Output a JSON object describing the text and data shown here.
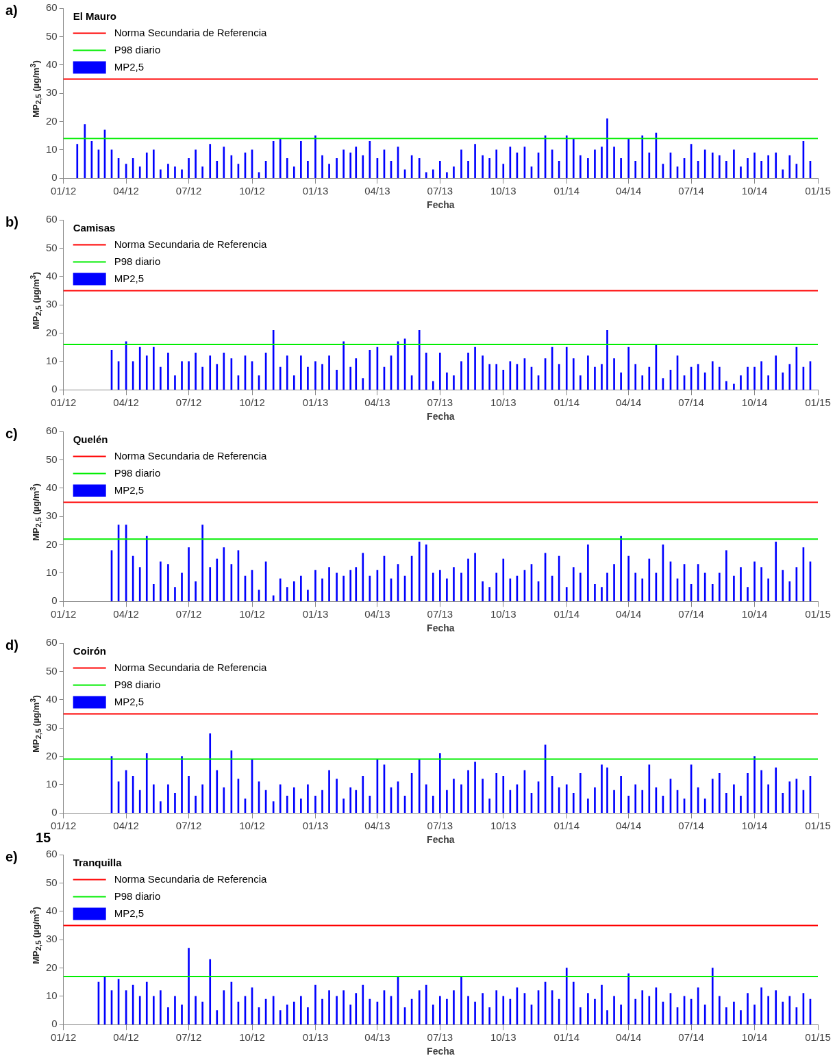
{
  "chart_data": [
    {
      "type": "bar",
      "title": "a)",
      "legend_title": "El Mauro",
      "xlabel": "Fecha",
      "ylabel": "MP$_{2,5}$ (µg/m$^{3}$)",
      "legend": "top left",
      "grid": false,
      "xlim": [
        "2012-01-01",
        "2015-01-01"
      ],
      "xticks": [
        {
          "value": "2012-01-01",
          "label": "01/12"
        },
        {
          "value": "2012-04-01",
          "label": "04/12"
        },
        {
          "value": "2012-07-01",
          "label": "07/12"
        },
        {
          "value": "2012-10-01",
          "label": "10/12"
        },
        {
          "value": "2013-01-01",
          "label": "01/13"
        },
        {
          "value": "2013-04-01",
          "label": "04/13"
        },
        {
          "value": "2013-07-01",
          "label": "07/13"
        },
        {
          "value": "2013-10-01",
          "label": "10/13"
        },
        {
          "value": "2014-01-01",
          "label": "01/14"
        },
        {
          "value": "2014-04-01",
          "label": "04/14"
        },
        {
          "value": "2014-07-01",
          "label": "07/14"
        },
        {
          "value": "2014-10-01",
          "label": "10/14"
        },
        {
          "value": "2015-01-01",
          "label": "01/15"
        }
      ],
      "ylim": [
        0,
        60
      ],
      "yticks": [
        0,
        10,
        20,
        30,
        40,
        50,
        60
      ],
      "ref_lines": [
        {
          "axis": "y",
          "value": 35,
          "label": "Norma Secundaria de Referencia",
          "color": "#ff0000"
        },
        {
          "axis": "y",
          "value": 14,
          "label": "P98 diario",
          "color": "#00ee00"
        }
      ],
      "x": [
        "2012-01-21",
        "2012-02-01",
        "2012-02-11",
        "2012-02-21",
        "2012-03-01",
        "2012-03-11",
        "2012-03-21",
        "2012-04-01",
        "2012-04-11",
        "2012-04-21",
        "2012-05-01",
        "2012-05-11",
        "2012-05-21",
        "2012-06-01",
        "2012-06-11",
        "2012-06-21",
        "2012-07-01",
        "2012-07-11",
        "2012-07-21",
        "2012-08-01",
        "2012-08-11",
        "2012-08-21",
        "2012-09-01",
        "2012-09-11",
        "2012-09-21",
        "2012-10-01",
        "2012-10-11",
        "2012-10-21",
        "2012-11-01",
        "2012-11-11",
        "2012-11-21",
        "2012-12-01",
        "2012-12-11",
        "2012-12-21",
        "2013-01-01",
        "2013-01-11",
        "2013-01-21",
        "2013-02-01",
        "2013-02-11",
        "2013-02-21",
        "2013-03-01",
        "2013-03-11",
        "2013-03-21",
        "2013-04-01",
        "2013-04-11",
        "2013-04-21",
        "2013-05-01",
        "2013-05-11",
        "2013-05-21",
        "2013-06-01",
        "2013-06-11",
        "2013-06-21",
        "2013-07-01",
        "2013-07-11",
        "2013-07-21",
        "2013-08-01",
        "2013-08-11",
        "2013-08-21",
        "2013-09-01",
        "2013-09-11",
        "2013-09-21",
        "2013-10-01",
        "2013-10-11",
        "2013-10-21",
        "2013-11-01",
        "2013-11-11",
        "2013-11-21",
        "2013-12-01",
        "2013-12-11",
        "2013-12-21",
        "2014-01-01",
        "2014-01-11",
        "2014-01-21",
        "2014-02-01",
        "2014-02-11",
        "2014-02-21",
        "2014-03-01",
        "2014-03-11",
        "2014-03-21",
        "2014-04-01",
        "2014-04-11",
        "2014-04-21",
        "2014-05-01",
        "2014-05-11",
        "2014-05-21",
        "2014-06-01",
        "2014-06-11",
        "2014-06-21",
        "2014-07-01",
        "2014-07-11",
        "2014-07-21",
        "2014-08-01",
        "2014-08-11",
        "2014-08-21",
        "2014-09-01",
        "2014-09-11",
        "2014-09-21",
        "2014-10-01",
        "2014-10-11",
        "2014-10-21",
        "2014-11-01",
        "2014-11-11",
        "2014-11-21",
        "2014-12-01",
        "2014-12-11",
        "2014-12-21"
      ],
      "series": [
        {
          "name": "MP2,5",
          "color": "#0000ff",
          "values": [
            12,
            19,
            13,
            10,
            17,
            10,
            7,
            5,
            7,
            4,
            9,
            10,
            3,
            5,
            4,
            3,
            7,
            10,
            4,
            12,
            6,
            11,
            8,
            5,
            9,
            10,
            2,
            6,
            13,
            14,
            7,
            4,
            13,
            6,
            15,
            8,
            5,
            7,
            10,
            9,
            11,
            8,
            13,
            7,
            10,
            6,
            11,
            3,
            8,
            7,
            2,
            3,
            6,
            2,
            4,
            10,
            6,
            12,
            8,
            7,
            10,
            5,
            11,
            9,
            11,
            4,
            9,
            15,
            10,
            6,
            15,
            14,
            8,
            7,
            10,
            11,
            21,
            11,
            7,
            14,
            6,
            15,
            9,
            16,
            5,
            9,
            4,
            7,
            12,
            6,
            10,
            9,
            8,
            6,
            10,
            4,
            7,
            9,
            6,
            8,
            9,
            3,
            8,
            5,
            13,
            6
          ]
        }
      ]
    },
    {
      "type": "bar",
      "title": "b)",
      "legend_title": "Camisas",
      "xlabel": "Fecha",
      "ylabel": "MP$_{2,5}$ (µg/m$^{3}$)",
      "legend": "top left",
      "grid": false,
      "xlim": [
        "2012-01-01",
        "2015-01-01"
      ],
      "xticks": [
        {
          "value": "2012-01-01",
          "label": "01/12"
        },
        {
          "value": "2012-04-01",
          "label": "04/12"
        },
        {
          "value": "2012-07-01",
          "label": "07/12"
        },
        {
          "value": "2012-10-01",
          "label": "10/12"
        },
        {
          "value": "2013-01-01",
          "label": "01/13"
        },
        {
          "value": "2013-04-01",
          "label": "04/13"
        },
        {
          "value": "2013-07-01",
          "label": "07/13"
        },
        {
          "value": "2013-10-01",
          "label": "10/13"
        },
        {
          "value": "2014-01-01",
          "label": "01/14"
        },
        {
          "value": "2014-04-01",
          "label": "04/14"
        },
        {
          "value": "2014-07-01",
          "label": "07/14"
        },
        {
          "value": "2014-10-01",
          "label": "10/14"
        },
        {
          "value": "2015-01-01",
          "label": "01/15"
        }
      ],
      "ylim": [
        0,
        60
      ],
      "yticks": [
        0,
        10,
        20,
        30,
        40,
        50,
        60
      ],
      "ref_lines": [
        {
          "axis": "y",
          "value": 35,
          "label": "Norma Secundaria de Referencia",
          "color": "#ff0000"
        },
        {
          "axis": "y",
          "value": 16,
          "label": "P98 diario",
          "color": "#00ee00"
        }
      ],
      "x": [
        "2012-03-11",
        "2012-03-21",
        "2012-04-01",
        "2012-04-11",
        "2012-04-21",
        "2012-05-01",
        "2012-05-11",
        "2012-05-21",
        "2012-06-01",
        "2012-06-11",
        "2012-06-21",
        "2012-07-01",
        "2012-07-11",
        "2012-07-21",
        "2012-08-01",
        "2012-08-11",
        "2012-08-21",
        "2012-09-01",
        "2012-09-11",
        "2012-09-21",
        "2012-10-01",
        "2012-10-11",
        "2012-10-21",
        "2012-11-01",
        "2012-11-11",
        "2012-11-21",
        "2012-12-01",
        "2012-12-11",
        "2012-12-21",
        "2013-01-01",
        "2013-01-11",
        "2013-01-21",
        "2013-02-01",
        "2013-02-11",
        "2013-02-21",
        "2013-03-01",
        "2013-03-11",
        "2013-03-21",
        "2013-04-01",
        "2013-04-11",
        "2013-04-21",
        "2013-05-01",
        "2013-05-11",
        "2013-05-21",
        "2013-06-01",
        "2013-06-11",
        "2013-06-21",
        "2013-07-01",
        "2013-07-11",
        "2013-07-21",
        "2013-08-01",
        "2013-08-11",
        "2013-08-21",
        "2013-09-01",
        "2013-09-11",
        "2013-09-21",
        "2013-10-01",
        "2013-10-11",
        "2013-10-21",
        "2013-11-01",
        "2013-11-11",
        "2013-11-21",
        "2013-12-01",
        "2013-12-11",
        "2013-12-21",
        "2014-01-01",
        "2014-01-11",
        "2014-01-21",
        "2014-02-01",
        "2014-02-11",
        "2014-02-21",
        "2014-03-01",
        "2014-03-11",
        "2014-03-21",
        "2014-04-01",
        "2014-04-11",
        "2014-04-21",
        "2014-05-01",
        "2014-05-11",
        "2014-05-21",
        "2014-06-01",
        "2014-06-11",
        "2014-06-21",
        "2014-07-01",
        "2014-07-11",
        "2014-07-21",
        "2014-08-01",
        "2014-08-11",
        "2014-08-21",
        "2014-09-01",
        "2014-09-11",
        "2014-09-21",
        "2014-10-01",
        "2014-10-11",
        "2014-10-21",
        "2014-11-01",
        "2014-11-11",
        "2014-11-21",
        "2014-12-01",
        "2014-12-11",
        "2014-12-21"
      ],
      "series": [
        {
          "name": "MP2,5",
          "color": "#0000ff",
          "values": [
            14,
            10,
            17,
            10,
            15,
            12,
            15,
            8,
            13,
            5,
            10,
            10,
            13,
            8,
            12,
            9,
            13,
            11,
            5,
            12,
            10,
            5,
            13,
            21,
            8,
            12,
            5,
            12,
            8,
            10,
            9,
            12,
            7,
            17,
            8,
            11,
            4,
            14,
            15,
            8,
            12,
            17,
            18,
            5,
            21,
            13,
            3,
            13,
            6,
            5,
            10,
            13,
            15,
            12,
            9,
            9,
            7,
            10,
            9,
            11,
            8,
            5,
            11,
            15,
            9,
            15,
            11,
            5,
            12,
            8,
            9,
            21,
            11,
            6,
            15,
            9,
            5,
            8,
            16,
            4,
            7,
            12,
            5,
            8,
            9,
            6,
            10,
            8,
            3,
            2,
            5,
            8,
            8,
            10,
            5,
            12,
            6,
            9,
            15,
            8,
            10
          ]
        }
      ]
    },
    {
      "type": "bar",
      "title": "c)",
      "legend_title": "Quelén",
      "xlabel": "Fecha",
      "ylabel": "MP$_{2,5}$ (µg/m$^{3}$)",
      "legend": "top left",
      "grid": false,
      "xlim": [
        "2012-01-01",
        "2015-01-01"
      ],
      "xticks": [
        {
          "value": "2012-01-01",
          "label": "01/12"
        },
        {
          "value": "2012-04-01",
          "label": "04/12"
        },
        {
          "value": "2012-07-01",
          "label": "07/12"
        },
        {
          "value": "2012-10-01",
          "label": "10/12"
        },
        {
          "value": "2013-01-01",
          "label": "01/13"
        },
        {
          "value": "2013-04-01",
          "label": "04/13"
        },
        {
          "value": "2013-07-01",
          "label": "07/13"
        },
        {
          "value": "2013-10-01",
          "label": "10/13"
        },
        {
          "value": "2014-01-01",
          "label": "01/14"
        },
        {
          "value": "2014-04-01",
          "label": "04/14"
        },
        {
          "value": "2014-07-01",
          "label": "07/14"
        },
        {
          "value": "2014-10-01",
          "label": "10/14"
        },
        {
          "value": "2015-01-01",
          "label": "01/15"
        }
      ],
      "ylim": [
        0,
        60
      ],
      "yticks": [
        0,
        10,
        20,
        30,
        40,
        50,
        60
      ],
      "ref_lines": [
        {
          "axis": "y",
          "value": 35,
          "label": "Norma Secundaria de Referencia",
          "color": "#ff0000"
        },
        {
          "axis": "y",
          "value": 22,
          "label": "P98 diario",
          "color": "#00ee00"
        }
      ],
      "x": [
        "2012-03-11",
        "2012-03-21",
        "2012-04-01",
        "2012-04-11",
        "2012-04-21",
        "2012-05-01",
        "2012-05-11",
        "2012-05-21",
        "2012-06-01",
        "2012-06-11",
        "2012-06-21",
        "2012-07-01",
        "2012-07-11",
        "2012-07-21",
        "2012-08-01",
        "2012-08-11",
        "2012-08-21",
        "2012-09-01",
        "2012-09-11",
        "2012-09-21",
        "2012-10-01",
        "2012-10-11",
        "2012-10-21",
        "2012-11-01",
        "2012-11-11",
        "2012-11-21",
        "2012-12-01",
        "2012-12-11",
        "2012-12-21",
        "2013-01-01",
        "2013-01-11",
        "2013-01-21",
        "2013-02-01",
        "2013-02-11",
        "2013-02-21",
        "2013-03-01",
        "2013-03-11",
        "2013-03-21",
        "2013-04-01",
        "2013-04-11",
        "2013-04-21",
        "2013-05-01",
        "2013-05-11",
        "2013-05-21",
        "2013-06-01",
        "2013-06-11",
        "2013-06-21",
        "2013-07-01",
        "2013-07-11",
        "2013-07-21",
        "2013-08-01",
        "2013-08-11",
        "2013-08-21",
        "2013-09-01",
        "2013-09-11",
        "2013-09-21",
        "2013-10-01",
        "2013-10-11",
        "2013-10-21",
        "2013-11-01",
        "2013-11-11",
        "2013-11-21",
        "2013-12-01",
        "2013-12-11",
        "2013-12-21",
        "2014-01-01",
        "2014-01-11",
        "2014-01-21",
        "2014-02-01",
        "2014-02-11",
        "2014-02-21",
        "2014-03-01",
        "2014-03-11",
        "2014-03-21",
        "2014-04-01",
        "2014-04-11",
        "2014-04-21",
        "2014-05-01",
        "2014-05-11",
        "2014-05-21",
        "2014-06-01",
        "2014-06-11",
        "2014-06-21",
        "2014-07-01",
        "2014-07-11",
        "2014-07-21",
        "2014-08-01",
        "2014-08-11",
        "2014-08-21",
        "2014-09-01",
        "2014-09-11",
        "2014-09-21",
        "2014-10-01",
        "2014-10-11",
        "2014-10-21",
        "2014-11-01",
        "2014-11-11",
        "2014-11-21",
        "2014-12-01",
        "2014-12-11",
        "2014-12-21"
      ],
      "series": [
        {
          "name": "MP2,5",
          "color": "#0000ff",
          "values": [
            18,
            27,
            27,
            16,
            12,
            23,
            6,
            14,
            13,
            5,
            10,
            19,
            7,
            27,
            12,
            15,
            19,
            13,
            18,
            9,
            11,
            4,
            14,
            2,
            8,
            5,
            7,
            9,
            4,
            11,
            8,
            12,
            10,
            9,
            11,
            12,
            17,
            9,
            11,
            16,
            8,
            13,
            9,
            16,
            21,
            20,
            10,
            11,
            8,
            12,
            10,
            15,
            17,
            7,
            5,
            10,
            15,
            8,
            9,
            11,
            13,
            7,
            17,
            9,
            16,
            5,
            12,
            10,
            20,
            6,
            5,
            10,
            13,
            23,
            16,
            10,
            8,
            15,
            10,
            20,
            14,
            8,
            13,
            6,
            13,
            10,
            6,
            10,
            18,
            9,
            12,
            5,
            14,
            12,
            8,
            21,
            11,
            7,
            12,
            19,
            14
          ]
        }
      ]
    },
    {
      "type": "bar",
      "title": "d)",
      "legend_title": "Coirón",
      "xlabel": "Fecha",
      "ylabel": "MP$_{2,5}$ (µg/m$^{3}$)",
      "legend": "top left",
      "grid": false,
      "xlim": [
        "2012-01-01",
        "2015-01-01"
      ],
      "xticks": [
        {
          "value": "2012-01-01",
          "label": "01/12"
        },
        {
          "value": "2012-04-01",
          "label": "04/12"
        },
        {
          "value": "2012-07-01",
          "label": "07/12"
        },
        {
          "value": "2012-10-01",
          "label": "10/12"
        },
        {
          "value": "2013-01-01",
          "label": "01/13"
        },
        {
          "value": "2013-04-01",
          "label": "04/13"
        },
        {
          "value": "2013-07-01",
          "label": "07/13"
        },
        {
          "value": "2013-10-01",
          "label": "10/13"
        },
        {
          "value": "2014-01-01",
          "label": "01/14"
        },
        {
          "value": "2014-04-01",
          "label": "04/14"
        },
        {
          "value": "2014-07-01",
          "label": "07/14"
        },
        {
          "value": "2014-10-01",
          "label": "10/14"
        },
        {
          "value": "2015-01-01",
          "label": "01/15"
        }
      ],
      "ylim": [
        0,
        60
      ],
      "yticks": [
        0,
        10,
        20,
        30,
        40,
        50,
        60
      ],
      "ref_lines": [
        {
          "axis": "y",
          "value": 35,
          "label": "Norma Secundaria de Referencia",
          "color": "#ff0000"
        },
        {
          "axis": "y",
          "value": 19,
          "label": "P98 diario",
          "color": "#00ee00"
        }
      ],
      "x": [
        "2012-03-11",
        "2012-03-21",
        "2012-04-01",
        "2012-04-11",
        "2012-04-21",
        "2012-05-01",
        "2012-05-11",
        "2012-05-21",
        "2012-06-01",
        "2012-06-11",
        "2012-06-21",
        "2012-07-01",
        "2012-07-11",
        "2012-07-21",
        "2012-08-01",
        "2012-08-11",
        "2012-08-21",
        "2012-09-01",
        "2012-09-11",
        "2012-09-21",
        "2012-10-01",
        "2012-10-11",
        "2012-10-21",
        "2012-11-01",
        "2012-11-11",
        "2012-11-21",
        "2012-12-01",
        "2012-12-11",
        "2012-12-21",
        "2013-01-01",
        "2013-01-11",
        "2013-01-21",
        "2013-02-01",
        "2013-02-11",
        "2013-02-21",
        "2013-03-01",
        "2013-03-11",
        "2013-03-21",
        "2013-04-01",
        "2013-04-11",
        "2013-04-21",
        "2013-05-01",
        "2013-05-11",
        "2013-05-21",
        "2013-06-01",
        "2013-06-11",
        "2013-06-21",
        "2013-07-01",
        "2013-07-11",
        "2013-07-21",
        "2013-08-01",
        "2013-08-11",
        "2013-08-21",
        "2013-09-01",
        "2013-09-11",
        "2013-09-21",
        "2013-10-01",
        "2013-10-11",
        "2013-10-21",
        "2013-11-01",
        "2013-11-11",
        "2013-11-21",
        "2013-12-01",
        "2013-12-11",
        "2013-12-21",
        "2014-01-01",
        "2014-01-11",
        "2014-01-21",
        "2014-02-01",
        "2014-02-11",
        "2014-02-21",
        "2014-03-01",
        "2014-03-11",
        "2014-03-21",
        "2014-04-01",
        "2014-04-11",
        "2014-04-21",
        "2014-05-01",
        "2014-05-11",
        "2014-05-21",
        "2014-06-01",
        "2014-06-11",
        "2014-06-21",
        "2014-07-01",
        "2014-07-11",
        "2014-07-21",
        "2014-08-01",
        "2014-08-11",
        "2014-08-21",
        "2014-09-01",
        "2014-09-11",
        "2014-09-21",
        "2014-10-01",
        "2014-10-11",
        "2014-10-21",
        "2014-11-01",
        "2014-11-11",
        "2014-11-21",
        "2014-12-01",
        "2014-12-11",
        "2014-12-21"
      ],
      "series": [
        {
          "name": "MP2,5",
          "color": "#0000ff",
          "values": [
            20,
            11,
            15,
            13,
            8,
            21,
            10,
            4,
            10,
            7,
            20,
            13,
            6,
            10,
            28,
            15,
            9,
            22,
            12,
            5,
            19,
            11,
            8,
            4,
            10,
            6,
            9,
            5,
            10,
            6,
            8,
            15,
            12,
            5,
            9,
            8,
            13,
            6,
            19,
            17,
            9,
            11,
            6,
            14,
            19,
            10,
            6,
            21,
            8,
            12,
            10,
            15,
            18,
            12,
            5,
            14,
            13,
            8,
            10,
            15,
            7,
            11,
            24,
            13,
            9,
            10,
            7,
            14,
            5,
            9,
            17,
            16,
            8,
            13,
            6,
            10,
            8,
            17,
            9,
            6,
            12,
            8,
            5,
            17,
            9,
            5,
            12,
            14,
            7,
            10,
            6,
            14,
            20,
            15,
            10,
            16,
            7,
            11,
            12,
            8,
            13
          ]
        }
      ]
    },
    {
      "type": "bar",
      "title": "e)",
      "legend_title": "Tranquilla",
      "xlabel": "Fecha",
      "ylabel": "MP$_{2,5}$ (µg/m$^{3}$)",
      "legend": "top left",
      "grid": false,
      "annotations": [
        "15"
      ],
      "xlim": [
        "2012-01-01",
        "2015-01-01"
      ],
      "xticks": [
        {
          "value": "2012-01-01",
          "label": "01/12"
        },
        {
          "value": "2012-04-01",
          "label": "04/12"
        },
        {
          "value": "2012-07-01",
          "label": "07/12"
        },
        {
          "value": "2012-10-01",
          "label": "10/12"
        },
        {
          "value": "2013-01-01",
          "label": "01/13"
        },
        {
          "value": "2013-04-01",
          "label": "04/13"
        },
        {
          "value": "2013-07-01",
          "label": "07/13"
        },
        {
          "value": "2013-10-01",
          "label": "10/13"
        },
        {
          "value": "2014-01-01",
          "label": "01/14"
        },
        {
          "value": "2014-04-01",
          "label": "04/14"
        },
        {
          "value": "2014-07-01",
          "label": "07/14"
        },
        {
          "value": "2014-10-01",
          "label": "10/14"
        },
        {
          "value": "2015-01-01",
          "label": "01/15"
        }
      ],
      "ylim": [
        0,
        60
      ],
      "yticks": [
        0,
        10,
        20,
        30,
        40,
        50,
        60
      ],
      "ref_lines": [
        {
          "axis": "y",
          "value": 35,
          "label": "Norma Secundaria de Referencia",
          "color": "#ff0000"
        },
        {
          "axis": "y",
          "value": 17,
          "label": "P98 diario",
          "color": "#00ee00"
        }
      ],
      "x": [
        "2012-02-21",
        "2012-03-01",
        "2012-03-11",
        "2012-03-21",
        "2012-04-01",
        "2012-04-11",
        "2012-04-21",
        "2012-05-01",
        "2012-05-11",
        "2012-05-21",
        "2012-06-01",
        "2012-06-11",
        "2012-06-21",
        "2012-07-01",
        "2012-07-11",
        "2012-07-21",
        "2012-08-01",
        "2012-08-11",
        "2012-08-21",
        "2012-09-01",
        "2012-09-11",
        "2012-09-21",
        "2012-10-01",
        "2012-10-11",
        "2012-10-21",
        "2012-11-01",
        "2012-11-11",
        "2012-11-21",
        "2012-12-01",
        "2012-12-11",
        "2012-12-21",
        "2013-01-01",
        "2013-01-11",
        "2013-01-21",
        "2013-02-01",
        "2013-02-11",
        "2013-02-21",
        "2013-03-01",
        "2013-03-11",
        "2013-03-21",
        "2013-04-01",
        "2013-04-11",
        "2013-04-21",
        "2013-05-01",
        "2013-05-11",
        "2013-05-21",
        "2013-06-01",
        "2013-06-11",
        "2013-06-21",
        "2013-07-01",
        "2013-07-11",
        "2013-07-21",
        "2013-08-01",
        "2013-08-11",
        "2013-08-21",
        "2013-09-01",
        "2013-09-11",
        "2013-09-21",
        "2013-10-01",
        "2013-10-11",
        "2013-10-21",
        "2013-11-01",
        "2013-11-11",
        "2013-11-21",
        "2013-12-01",
        "2013-12-11",
        "2013-12-21",
        "2014-01-01",
        "2014-01-11",
        "2014-01-21",
        "2014-02-01",
        "2014-02-11",
        "2014-02-21",
        "2014-03-01",
        "2014-03-11",
        "2014-03-21",
        "2014-04-01",
        "2014-04-11",
        "2014-04-21",
        "2014-05-01",
        "2014-05-11",
        "2014-05-21",
        "2014-06-01",
        "2014-06-11",
        "2014-06-21",
        "2014-07-01",
        "2014-07-11",
        "2014-07-21",
        "2014-08-01",
        "2014-08-11",
        "2014-08-21",
        "2014-09-01",
        "2014-09-11",
        "2014-09-21",
        "2014-10-01",
        "2014-10-11",
        "2014-10-21",
        "2014-11-01",
        "2014-11-11",
        "2014-11-21",
        "2014-12-01",
        "2014-12-11",
        "2014-12-21"
      ],
      "series": [
        {
          "name": "MP2,5",
          "color": "#0000ff",
          "values": [
            15,
            17,
            12,
            16,
            12,
            14,
            10,
            15,
            10,
            12,
            6,
            10,
            7,
            27,
            10,
            8,
            23,
            5,
            12,
            15,
            8,
            10,
            13,
            6,
            9,
            10,
            5,
            7,
            8,
            10,
            6,
            14,
            9,
            12,
            10,
            12,
            7,
            11,
            14,
            9,
            8,
            12,
            10,
            17,
            6,
            9,
            12,
            14,
            7,
            10,
            9,
            12,
            17,
            10,
            8,
            11,
            6,
            12,
            10,
            9,
            13,
            11,
            7,
            12,
            15,
            12,
            9,
            20,
            15,
            6,
            11,
            9,
            14,
            5,
            10,
            7,
            18,
            9,
            12,
            10,
            13,
            8,
            11,
            6,
            10,
            9,
            13,
            7,
            20,
            10,
            6,
            8,
            5,
            11,
            7,
            13,
            10,
            12,
            8,
            10,
            6,
            11,
            9
          ]
        }
      ]
    }
  ]
}
